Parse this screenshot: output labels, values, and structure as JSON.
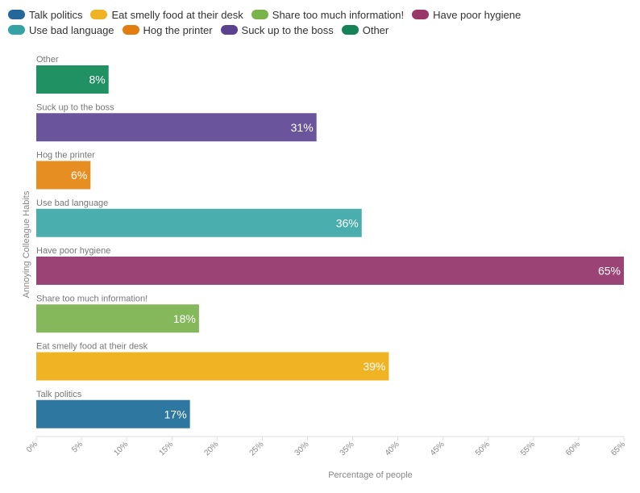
{
  "chart_data": {
    "type": "bar",
    "orientation": "horizontal",
    "categories": [
      "Talk politics",
      "Eat smelly food at their desk",
      "Share too much information!",
      "Have poor hygiene",
      "Use bad language",
      "Hog the printer",
      "Suck up to the boss",
      "Other"
    ],
    "values": [
      17,
      39,
      18,
      65,
      36,
      6,
      31,
      8
    ],
    "value_labels": [
      "17%",
      "39%",
      "18%",
      "65%",
      "36%",
      "6%",
      "31%",
      "8%"
    ],
    "colors": [
      "#2e77a0",
      "#f0b323",
      "#84b85a",
      "#9c4375",
      "#4baeae",
      "#e78e22",
      "#6a559c",
      "#1f9163"
    ],
    "legend_colors": [
      "#24679a",
      "#f0b323",
      "#79b34b",
      "#983768",
      "#35a3a3",
      "#e17e0f",
      "#5a428f",
      "#168258"
    ],
    "xlabel": "Percentage of people",
    "ylabel": "Annoying Colleague Habits",
    "xlim": [
      0,
      65
    ],
    "x_ticks": [
      "0%",
      "5%",
      "10%",
      "15%",
      "20%",
      "25%",
      "30%",
      "35%",
      "40%",
      "45%",
      "50%",
      "55%",
      "60%",
      "65%"
    ],
    "legend_position": "top"
  }
}
